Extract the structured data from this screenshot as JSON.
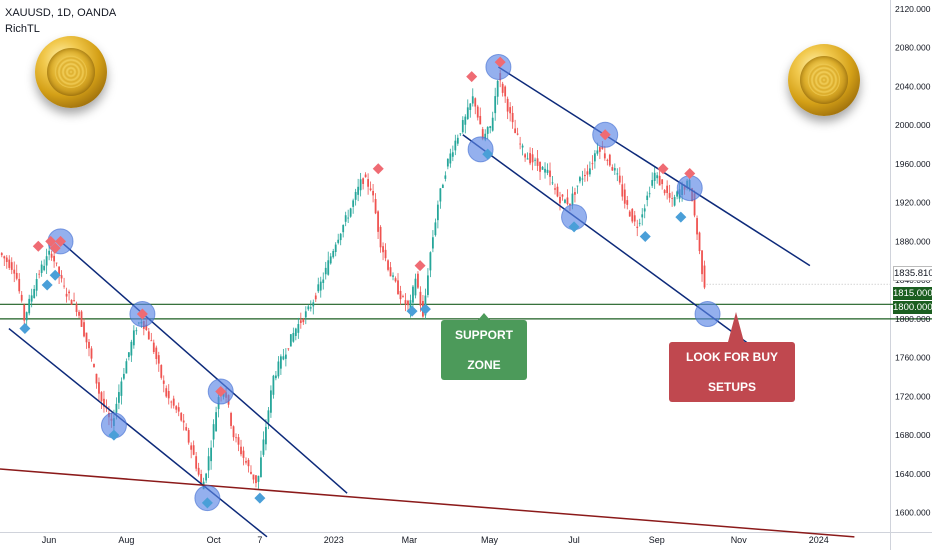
{
  "header": {
    "title": "XAUUSD, 1D, OANDA",
    "indicator": "RichTL"
  },
  "colors": {
    "up": "#26a69a",
    "down": "#ef5350",
    "trendline": "#0d2a7a",
    "support": "#1b5e20",
    "long_trendline": "#8b1a1a",
    "highlight": "#5b86e5",
    "diamond_red": "#ef6b73",
    "diamond_blue": "#4a9fd8",
    "support_label_bg": "#4c9a5a",
    "buy_label_bg": "#c0484f"
  },
  "annotations": {
    "support_zone": "SUPPORT ZONE",
    "buy_setups": "LOOK FOR BUY SETUPS"
  },
  "chart_data": {
    "type": "candlestick",
    "symbol": "XAUUSD",
    "timeframe": "1D",
    "broker": "OANDA",
    "y_axis": {
      "ticks": [
        2120,
        2080,
        2040,
        2000,
        1960,
        1920,
        1880,
        1840,
        1800,
        1760,
        1720,
        1680,
        1640,
        1600
      ],
      "tick_labels": [
        "2120.000",
        "2080.000",
        "2040.000",
        "2000.000",
        "1960.000",
        "1920.000",
        "1880.000",
        "1840.000",
        "1800.000",
        "1760.000",
        "1720.000",
        "1680.000",
        "1640.000",
        "1600.000"
      ],
      "range": [
        1580,
        2125
      ]
    },
    "x_axis": {
      "labels": [
        "Jun",
        "Aug",
        "Oct",
        "7",
        "2023",
        "Mar",
        "May",
        "Jul",
        "Sep",
        "Nov",
        "2024"
      ],
      "label_positions": [
        0.055,
        0.142,
        0.24,
        0.292,
        0.375,
        0.46,
        0.55,
        0.645,
        0.738,
        0.83,
        0.92
      ]
    },
    "price_path": [
      [
        0.0,
        1870
      ],
      [
        0.02,
        1850
      ],
      [
        0.03,
        1800
      ],
      [
        0.045,
        1845
      ],
      [
        0.06,
        1870
      ],
      [
        0.075,
        1830
      ],
      [
        0.09,
        1810
      ],
      [
        0.105,
        1760
      ],
      [
        0.115,
        1720
      ],
      [
        0.128,
        1690
      ],
      [
        0.14,
        1740
      ],
      [
        0.155,
        1790
      ],
      [
        0.162,
        1800
      ],
      [
        0.175,
        1770
      ],
      [
        0.19,
        1720
      ],
      [
        0.205,
        1700
      ],
      [
        0.22,
        1660
      ],
      [
        0.23,
        1625
      ],
      [
        0.238,
        1660
      ],
      [
        0.248,
        1720
      ],
      [
        0.255,
        1730
      ],
      [
        0.265,
        1680
      ],
      [
        0.275,
        1660
      ],
      [
        0.285,
        1640
      ],
      [
        0.292,
        1630
      ],
      [
        0.3,
        1680
      ],
      [
        0.31,
        1740
      ],
      [
        0.32,
        1760
      ],
      [
        0.335,
        1790
      ],
      [
        0.35,
        1810
      ],
      [
        0.365,
        1840
      ],
      [
        0.38,
        1880
      ],
      [
        0.395,
        1910
      ],
      [
        0.41,
        1945
      ],
      [
        0.42,
        1935
      ],
      [
        0.43,
        1880
      ],
      [
        0.442,
        1845
      ],
      [
        0.455,
        1820
      ],
      [
        0.463,
        1810
      ],
      [
        0.47,
        1845
      ],
      [
        0.478,
        1800
      ],
      [
        0.485,
        1860
      ],
      [
        0.495,
        1920
      ],
      [
        0.505,
        1960
      ],
      [
        0.515,
        1985
      ],
      [
        0.525,
        2005
      ],
      [
        0.535,
        2030
      ],
      [
        0.545,
        1985
      ],
      [
        0.555,
        2000
      ],
      [
        0.562,
        2050
      ],
      [
        0.57,
        2030
      ],
      [
        0.58,
        1995
      ],
      [
        0.592,
        1970
      ],
      [
        0.605,
        1960
      ],
      [
        0.618,
        1950
      ],
      [
        0.63,
        1925
      ],
      [
        0.643,
        1920
      ],
      [
        0.655,
        1945
      ],
      [
        0.665,
        1955
      ],
      [
        0.675,
        1980
      ],
      [
        0.685,
        1965
      ],
      [
        0.695,
        1950
      ],
      [
        0.705,
        1920
      ],
      [
        0.718,
        1895
      ],
      [
        0.728,
        1920
      ],
      [
        0.738,
        1950
      ],
      [
        0.748,
        1935
      ],
      [
        0.758,
        1920
      ],
      [
        0.768,
        1935
      ],
      [
        0.778,
        1940
      ],
      [
        0.785,
        1895
      ],
      [
        0.79,
        1860
      ],
      [
        0.794,
        1835.81
      ]
    ],
    "last_price": "1835.810",
    "levels": [
      {
        "price": 1815,
        "label": "1815.000"
      },
      {
        "price": 1800,
        "label": "1800.000"
      }
    ],
    "support_zone": {
      "low": 1800,
      "high": 1815
    },
    "trendlines": [
      {
        "kind": "channel-2022-upper",
        "from": [
          0.068,
          1880
        ],
        "to": [
          0.39,
          1620
        ]
      },
      {
        "kind": "channel-2022-lower",
        "from": [
          0.01,
          1790
        ],
        "to": [
          0.3,
          1575
        ]
      },
      {
        "kind": "channel-2023-upper",
        "from": [
          0.56,
          2060
        ],
        "to": [
          0.91,
          1855
        ]
      },
      {
        "kind": "channel-2023-lower",
        "from": [
          0.52,
          1990
        ],
        "to": [
          0.84,
          1775
        ]
      },
      {
        "kind": "long-term",
        "from": [
          0.0,
          1645
        ],
        "to": [
          0.96,
          1575
        ]
      }
    ],
    "highlight_circles": [
      [
        0.068,
        1880
      ],
      [
        0.16,
        1805
      ],
      [
        0.128,
        1690
      ],
      [
        0.248,
        1725
      ],
      [
        0.233,
        1615
      ],
      [
        0.54,
        1975
      ],
      [
        0.56,
        2060
      ],
      [
        0.645,
        1905
      ],
      [
        0.68,
        1990
      ],
      [
        0.775,
        1935
      ],
      [
        0.795,
        1805
      ]
    ],
    "diamonds_red": [
      [
        0.043,
        1875
      ],
      [
        0.057,
        1880
      ],
      [
        0.062,
        1873
      ],
      [
        0.068,
        1880
      ],
      [
        0.16,
        1805
      ],
      [
        0.248,
        1725
      ],
      [
        0.425,
        1955
      ],
      [
        0.472,
        1855
      ],
      [
        0.53,
        2050
      ],
      [
        0.562,
        2065
      ],
      [
        0.68,
        1990
      ],
      [
        0.745,
        1955
      ],
      [
        0.775,
        1950
      ]
    ],
    "diamonds_blue": [
      [
        0.028,
        1790
      ],
      [
        0.053,
        1835
      ],
      [
        0.062,
        1845
      ],
      [
        0.128,
        1680
      ],
      [
        0.233,
        1610
      ],
      [
        0.292,
        1615
      ],
      [
        0.463,
        1808
      ],
      [
        0.478,
        1810
      ],
      [
        0.548,
        1970
      ],
      [
        0.645,
        1895
      ],
      [
        0.725,
        1885
      ],
      [
        0.765,
        1905
      ]
    ]
  }
}
